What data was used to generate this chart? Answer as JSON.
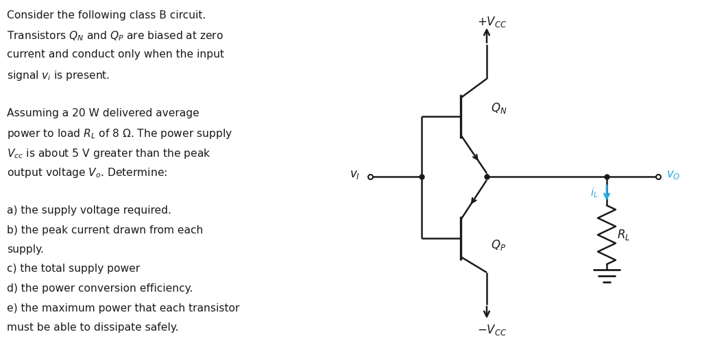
{
  "background_color": "#ffffff",
  "text_color": "#1a1a1a",
  "text_blocks": [
    "Consider the following class B circuit.",
    "Transistors $Q_N$ and $Q_P$ are biased at zero",
    "current and conduct only when the input",
    "signal $v_i$ is present.",
    "",
    "Assuming a 20 W delivered average",
    "power to load $R_L$ of 8 Ω. The power supply",
    "$V_{cc}$ is about 5 V greater than the peak",
    "output voltage $V_o$. Determine:",
    "",
    "a) the supply voltage required.",
    "b) the peak current drawn from each",
    "supply.",
    "c) the total supply power",
    "d) the power conversion efficiency.",
    "e) the maximum power that each transistor",
    "must be able to dissipate safely."
  ],
  "circuit_color": "#1a1a1a",
  "arrow_color": "#29a8e0",
  "label_color_blue": "#29a8e0",
  "label_color_black": "#1a1a1a",
  "lw": 1.8,
  "lw_body": 2.4
}
